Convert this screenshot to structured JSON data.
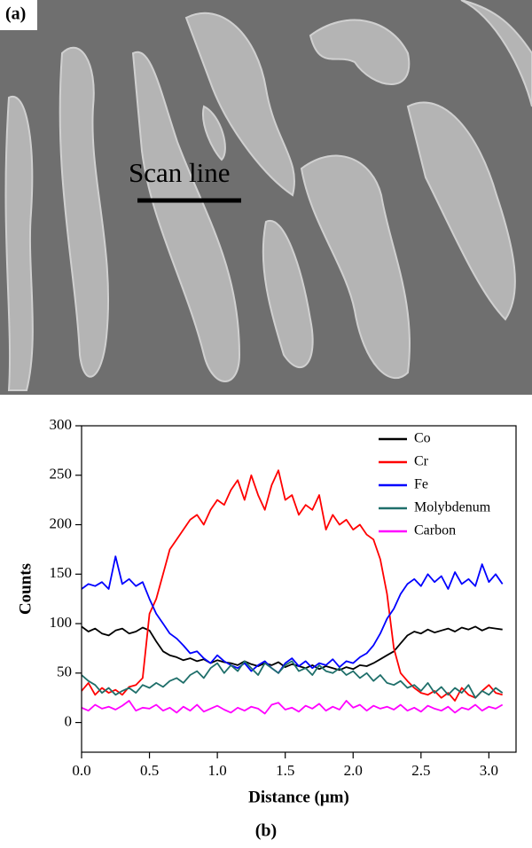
{
  "image_panel": {
    "label": "(a)",
    "annotation": "Scan line"
  },
  "chart_data": {
    "type": "line",
    "panel_label": "(b)",
    "x_label": "Distance (μm)",
    "y_label": "Counts",
    "x": [
      0,
      0.05,
      0.1,
      0.15,
      0.2,
      0.25,
      0.3,
      0.35,
      0.4,
      0.45,
      0.5,
      0.55,
      0.6,
      0.65,
      0.7,
      0.75,
      0.8,
      0.85,
      0.9,
      0.95,
      1,
      1.05,
      1.1,
      1.15,
      1.2,
      1.25,
      1.3,
      1.35,
      1.4,
      1.45,
      1.5,
      1.55,
      1.6,
      1.65,
      1.7,
      1.75,
      1.8,
      1.85,
      1.9,
      1.95,
      2,
      2.05,
      2.1,
      2.15,
      2.2,
      2.25,
      2.3,
      2.35,
      2.4,
      2.45,
      2.5,
      2.55,
      2.6,
      2.65,
      2.7,
      2.75,
      2.8,
      2.85,
      2.9,
      2.95,
      3,
      3.05,
      3.1
    ],
    "series": [
      {
        "name": "Co",
        "color": "#000000",
        "values": [
          97,
          92,
          95,
          90,
          88,
          93,
          95,
          90,
          92,
          96,
          93,
          82,
          72,
          68,
          66,
          63,
          65,
          62,
          64,
          60,
          63,
          61,
          60,
          58,
          62,
          59,
          57,
          60,
          58,
          61,
          56,
          59,
          57,
          55,
          58,
          54,
          57,
          55,
          53,
          56,
          54,
          58,
          57,
          60,
          64,
          68,
          72,
          80,
          88,
          92,
          90,
          94,
          91,
          93,
          95,
          92,
          96,
          94,
          97,
          93,
          96,
          95,
          94
        ]
      },
      {
        "name": "Cr",
        "color": "#ff0000",
        "values": [
          32,
          40,
          28,
          35,
          30,
          33,
          28,
          36,
          38,
          45,
          110,
          125,
          150,
          175,
          185,
          195,
          205,
          210,
          200,
          215,
          225,
          220,
          235,
          245,
          225,
          250,
          230,
          215,
          240,
          255,
          225,
          230,
          210,
          220,
          215,
          230,
          195,
          210,
          200,
          205,
          195,
          200,
          190,
          185,
          165,
          130,
          75,
          50,
          42,
          35,
          30,
          28,
          32,
          25,
          30,
          22,
          35,
          28,
          25,
          32,
          38,
          30,
          28
        ]
      },
      {
        "name": "Fe",
        "color": "#0000ff",
        "values": [
          135,
          140,
          138,
          142,
          135,
          168,
          140,
          145,
          138,
          142,
          125,
          110,
          100,
          90,
          85,
          78,
          70,
          72,
          65,
          60,
          68,
          62,
          58,
          55,
          60,
          52,
          58,
          62,
          55,
          50,
          60,
          65,
          57,
          62,
          55,
          60,
          58,
          64,
          56,
          62,
          60,
          66,
          70,
          78,
          90,
          105,
          115,
          130,
          140,
          145,
          138,
          150,
          142,
          148,
          135,
          152,
          140,
          145,
          138,
          160,
          142,
          150,
          140
        ]
      },
      {
        "name": "Molybdenum",
        "color": "#1f6f6a",
        "values": [
          48,
          42,
          38,
          30,
          35,
          28,
          32,
          35,
          30,
          38,
          35,
          40,
          36,
          42,
          45,
          40,
          48,
          52,
          45,
          55,
          60,
          50,
          58,
          52,
          62,
          55,
          48,
          60,
          55,
          50,
          58,
          62,
          52,
          55,
          48,
          58,
          52,
          50,
          55,
          48,
          52,
          45,
          50,
          42,
          48,
          40,
          38,
          42,
          35,
          38,
          32,
          40,
          30,
          36,
          28,
          35,
          30,
          38,
          25,
          32,
          28,
          35,
          30
        ]
      },
      {
        "name": "Carbon",
        "color": "#ff00ff",
        "values": [
          15,
          12,
          18,
          14,
          16,
          13,
          17,
          22,
          12,
          15,
          14,
          18,
          12,
          15,
          10,
          16,
          12,
          18,
          11,
          14,
          17,
          13,
          10,
          15,
          12,
          16,
          14,
          9,
          18,
          20,
          13,
          15,
          11,
          17,
          14,
          19,
          12,
          16,
          13,
          22,
          15,
          18,
          12,
          17,
          14,
          16,
          13,
          18,
          12,
          15,
          11,
          17,
          14,
          12,
          16,
          10,
          15,
          13,
          18,
          12,
          16,
          14,
          18
        ]
      }
    ],
    "xlim": [
      0,
      3.2
    ],
    "ylim": [
      -30,
      300
    ],
    "xticks": [
      {
        "value": 0,
        "label": "0.0"
      },
      0.5,
      {
        "value": 1,
        "label": "1.0"
      },
      1.5,
      {
        "value": 2,
        "label": "2.0"
      },
      2.5,
      {
        "value": 3,
        "label": "3.0"
      }
    ],
    "yticks": [
      0,
      50,
      100,
      150,
      200,
      250,
      300
    ],
    "legend": "upper right"
  }
}
